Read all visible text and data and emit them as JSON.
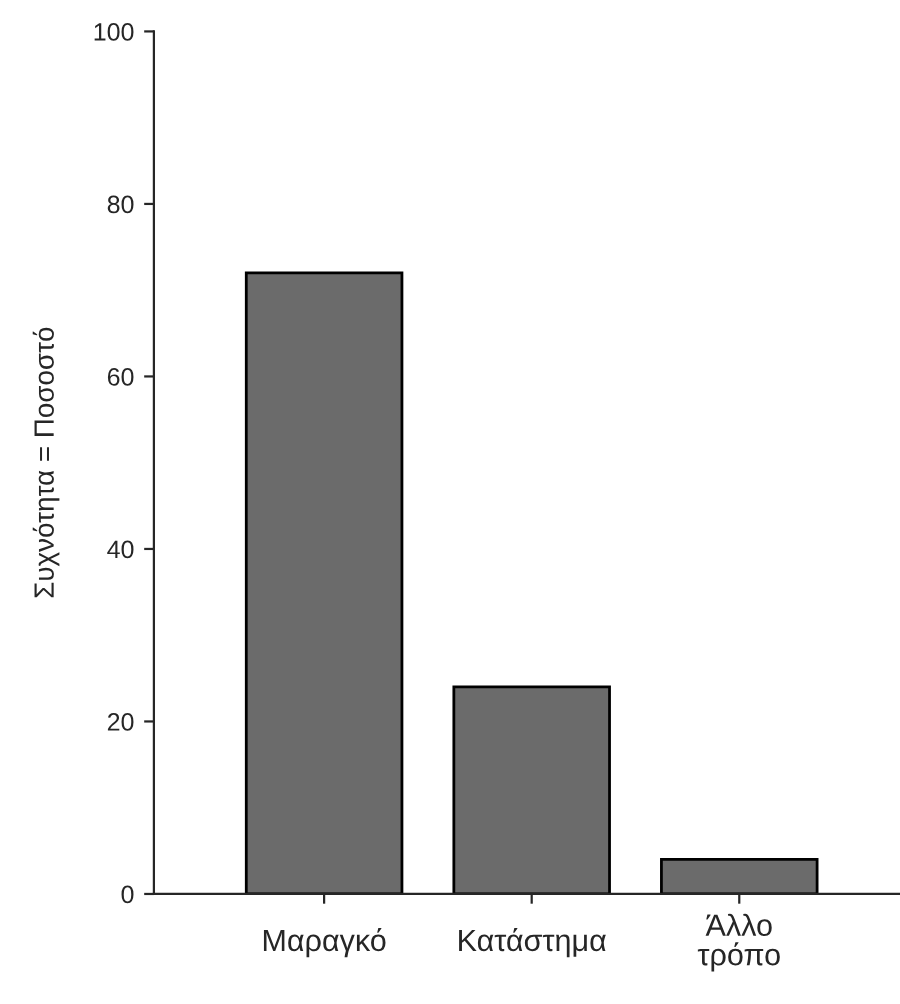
{
  "chart_data": {
    "type": "bar",
    "ylabel": "Συχνότητα = Ποσοστό",
    "categories": [
      "Μαραγκό",
      "Κατάστημα",
      "Άλλο τρόπο"
    ],
    "values": [
      72,
      24,
      4
    ],
    "color": "#6b6b6b",
    "ylim": [
      0,
      100
    ],
    "yticks": [
      0,
      20,
      40,
      60,
      80,
      100
    ],
    "grid": false,
    "legend": false
  }
}
